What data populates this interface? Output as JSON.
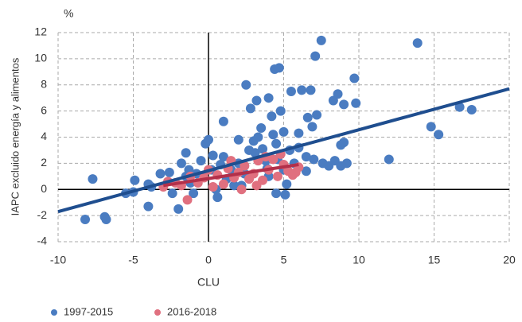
{
  "chart_data": {
    "type": "scatter",
    "y_unit": "%",
    "x_label": "CLU",
    "y_label": "IAPC excluido energía y alimentos",
    "xlim": [
      -10,
      20
    ],
    "xticks": [
      -10,
      -5,
      0,
      5,
      10,
      15,
      20
    ],
    "ylim": [
      -4,
      12
    ],
    "yticks": [
      -4,
      -2,
      0,
      2,
      4,
      6,
      8,
      10,
      12
    ],
    "grid": true,
    "legend": "bottom-left",
    "series": [
      {
        "name": "1997-2015",
        "color": "#4a7cc1",
        "x": [
          -8.2,
          -7.7,
          -6.9,
          -6.8,
          -5.5,
          -5,
          -4.9,
          -4,
          -4,
          -3.8,
          -3.2,
          -2.6,
          -2.4,
          -2,
          -1.8,
          -1.5,
          -1.5,
          -1.2,
          -1,
          -0.5,
          -0.2,
          0,
          0.2,
          0.5,
          0.6,
          1,
          1,
          1.2,
          1.5,
          2,
          2,
          2.2,
          2.4,
          2.5,
          2.8,
          3,
          3.1,
          3.2,
          3.3,
          3.5,
          3.6,
          3.8,
          4,
          4,
          4.2,
          4.3,
          4.4,
          4.5,
          4.5,
          4.6,
          4.7,
          4.8,
          5,
          5,
          5.1,
          5.2,
          5.4,
          5.5,
          5.7,
          6,
          6,
          6.2,
          6.5,
          6.5,
          6.6,
          6.8,
          6.9,
          7,
          7.1,
          7.2,
          7.5,
          7.6,
          8,
          8.3,
          8.4,
          8.6,
          8.8,
          8.8,
          9,
          9,
          9.2,
          9.7,
          9.8,
          12,
          13.9,
          14.8,
          15.3,
          16.7,
          17.5,
          -1.3,
          0.8,
          1.7,
          2.7,
          3.9,
          0.3,
          -0.8
        ],
        "values": [
          -2.3,
          0.8,
          -2.1,
          -2.3,
          -0.3,
          -0.2,
          0.7,
          0.4,
          -1.3,
          0.2,
          1.2,
          1.3,
          -0.3,
          -1.5,
          2,
          2.8,
          1,
          0.5,
          -0.3,
          2.2,
          3.5,
          3.8,
          1.5,
          0,
          -0.6,
          5.2,
          2.5,
          0.8,
          1.5,
          3.8,
          2,
          0.3,
          1.2,
          8,
          6.2,
          3.7,
          2.8,
          6.8,
          4,
          4.7,
          3.1,
          2.2,
          7,
          1,
          5.6,
          4.2,
          9.2,
          3.5,
          -0.3,
          2.3,
          9.3,
          6,
          4.4,
          1.5,
          -0.4,
          0.4,
          3,
          7.5,
          2,
          4.3,
          3.2,
          7.6,
          1.4,
          2.5,
          5.5,
          7.6,
          4.8,
          2.3,
          10.2,
          5.7,
          11.4,
          2,
          1.8,
          6.8,
          2.2,
          7.3,
          3.4,
          1.8,
          3.6,
          6.5,
          2,
          8.5,
          6.6,
          2.3,
          11.2,
          4.8,
          4.2,
          6.3,
          6.1,
          1.5,
          1.9,
          0.3,
          3,
          1.6,
          2.6,
          1.2
        ]
      },
      {
        "name": "2016-2018",
        "color": "#e0707f",
        "x": [
          -3,
          -2.7,
          -2.2,
          -1.4,
          -1.2,
          -0.7,
          -0.3,
          0.3,
          0.6,
          1,
          1.3,
          1.7,
          2,
          2.4,
          2.7,
          3,
          3.3,
          3.6,
          4,
          4.3,
          4.6,
          5,
          5.3,
          5.6,
          6,
          0,
          1.5,
          3.2,
          4.8,
          -1.8,
          2.2,
          5.8,
          3.8
        ],
        "values": [
          0.2,
          0.6,
          0.5,
          -0.8,
          1,
          0.5,
          0.9,
          0.2,
          1.1,
          0.4,
          1.6,
          0.9,
          1.3,
          1.8,
          0.8,
          1.2,
          2.2,
          0.7,
          1.5,
          2.3,
          1,
          1.9,
          1.4,
          1.1,
          1.7,
          1.5,
          2.2,
          0.3,
          2.7,
          0.3,
          0,
          1.3,
          2.5
        ]
      }
    ],
    "trend_lines": [
      {
        "color": "#1f4e8f",
        "x": [
          -10,
          20
        ],
        "values": [
          -1.7,
          7.7
        ]
      },
      {
        "color": "#b3304a",
        "x": [
          -3,
          6
        ],
        "values": [
          0.3,
          1.9
        ]
      }
    ]
  }
}
